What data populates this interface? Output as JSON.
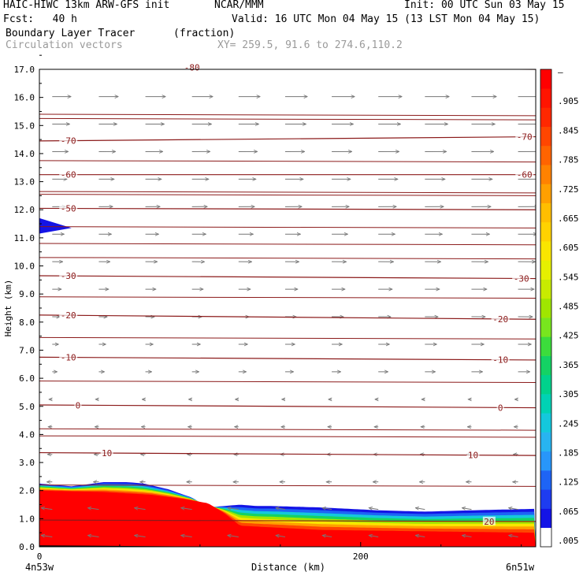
{
  "header": {
    "model": "HAIC-HIWC 13km ARW-GFS init",
    "org": "NCAR/MMM",
    "init": "Init: 00 UTC Sun 03 May 15",
    "fcst": "Fcst:   40 h",
    "valid": "Valid: 16 UTC Mon 04 May 15 (13 LST Mon 04 May 15)",
    "field": "Boundary Layer Tracer",
    "units": "(fraction)",
    "vectors": "Circulation vectors",
    "xy": "XY= 259.5, 91.6 to 274.6,110.2"
  },
  "colors": {
    "contour": "#8b1a1a",
    "vector": "#777777",
    "cbar": [
      "#ffffff",
      "#1414e6",
      "#1e3cf0",
      "#1e64f5",
      "#2896fa",
      "#28b4f0",
      "#14c8dc",
      "#00d2b4",
      "#00d28c",
      "#14d264",
      "#3cdc3c",
      "#78e61e",
      "#a0e600",
      "#c8eb00",
      "#e6f000",
      "#fae600",
      "#ffd200",
      "#ffbe00",
      "#ffa000",
      "#ff8200",
      "#ff6400",
      "#ff4600",
      "#ff2800",
      "#ff1400",
      "#ff0000"
    ]
  },
  "axes": {
    "ylabel": "Height (km)",
    "xlabel": "Distance (km)",
    "left_label": "4n53w",
    "right_label": "6n51w"
  },
  "chart_data": {
    "type": "contour",
    "xlim": [
      0,
      309
    ],
    "ylim": [
      0,
      17
    ],
    "yticks": [
      "0.0",
      "1.0",
      "2.0",
      "3.0",
      "4.0",
      "5.0",
      "6.0",
      "7.0",
      "8.0",
      "9.0",
      "10.0",
      "11.0",
      "12.0",
      "13.0",
      "14.0",
      "15.0",
      "16.0",
      "17.0"
    ],
    "xticks": [
      {
        "value": 0,
        "label": "0"
      },
      {
        "value": 200,
        "label": "200"
      }
    ],
    "colorbar": {
      "labels": [
        ".005",
        ".065",
        ".125",
        ".185",
        ".245",
        ".305",
        ".365",
        ".425",
        ".485",
        ".545",
        ".605",
        ".665",
        ".725",
        ".785",
        ".845",
        ".905",
        "–"
      ]
    },
    "temperature_contours": [
      {
        "label": "10",
        "left_y": 3.35,
        "right_y": 3.25,
        "label_left_x": 42,
        "label_right_x": 270
      },
      {
        "label": "0",
        "left_y": 5.05,
        "right_y": 4.95,
        "label_left_x": 24,
        "label_right_x": 287
      },
      {
        "label": "-10",
        "left_y": 6.75,
        "right_y": 6.65,
        "label_left_x": 18,
        "label_right_x": 287
      },
      {
        "label": "-20",
        "left_y": 8.25,
        "right_y": 8.1,
        "label_left_x": 18,
        "label_right_x": 287
      },
      {
        "label": "-30",
        "left_y": 9.65,
        "right_y": 9.55,
        "label_left_x": 18,
        "label_right_x": 300
      },
      {
        "label": "-50",
        "left_y": 12.05,
        "right_y": 12.0,
        "label_left_x": 18,
        "label_right_x": null
      },
      {
        "label": "-60",
        "left_y": 13.25,
        "right_y": 13.25,
        "label_left_x": 18,
        "label_right_x": 302
      },
      {
        "label": "-70",
        "left_y": 14.45,
        "right_y": 14.6,
        "label_left_x": 18,
        "label_right_x": 302
      },
      {
        "label": "-80",
        "left_y": 17.1,
        "right_y": 17.0,
        "label_left_x": 95,
        "label_right_x": null
      },
      {
        "label": "20",
        "left_y": 0.95,
        "right_y": 0.9,
        "label_left_x": null,
        "label_right_x": 280
      }
    ],
    "extra_isotherms_y": [
      2.2,
      3.95,
      4.2,
      5.9,
      7.45,
      8.9,
      10.3,
      10.8,
      11.4,
      12.55,
      12.65,
      13.75,
      15.25,
      15.4
    ],
    "tracer_top": {
      "x": [
        0,
        20,
        40,
        55,
        65,
        80,
        95,
        105,
        115,
        125,
        135,
        145,
        175,
        210,
        240,
        270,
        309
      ],
      "y": [
        2.25,
        2.15,
        2.3,
        2.3,
        2.25,
        2.05,
        1.75,
        1.4,
        1.45,
        1.5,
        1.45,
        1.45,
        1.4,
        1.3,
        1.25,
        1.3,
        1.35
      ]
    },
    "tracer_core_top": {
      "x": [
        0,
        40,
        70,
        90,
        105,
        115,
        125,
        175,
        240,
        309
      ],
      "y": [
        2.0,
        1.95,
        1.85,
        1.7,
        1.55,
        1.2,
        0.75,
        0.6,
        0.55,
        0.5
      ]
    },
    "tracer_upper_blob": {
      "x": [
        0,
        0,
        20
      ],
      "y": [
        11.15,
        11.7,
        11.35
      ]
    }
  }
}
